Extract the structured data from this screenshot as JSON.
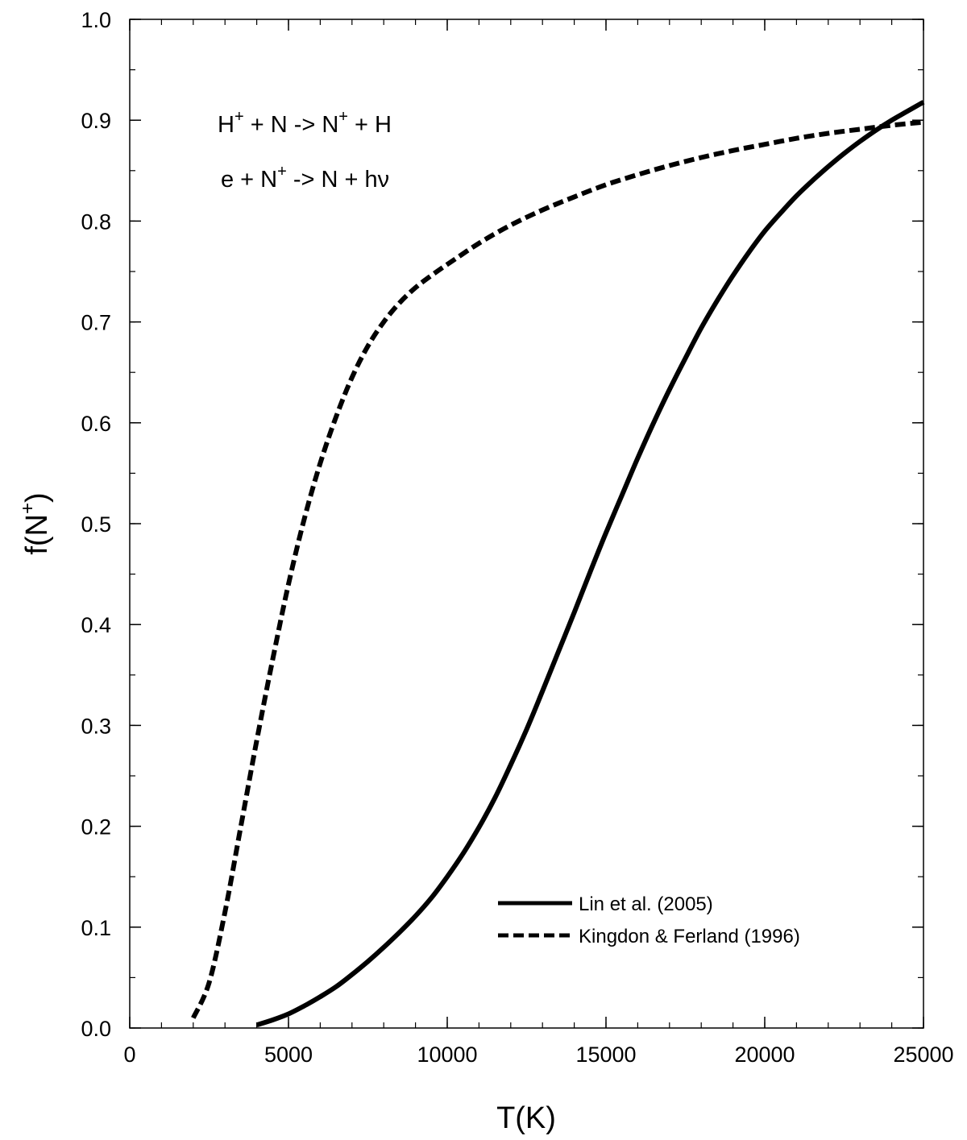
{
  "chart_data": {
    "type": "line",
    "title": "",
    "xlabel": "T(K)",
    "ylabel_base": "f(N",
    "ylabel_sup": "+",
    "ylabel_close": ")",
    "xlim": [
      0,
      25000
    ],
    "ylim": [
      0.0,
      1.0
    ],
    "x_ticks": [
      0,
      5000,
      10000,
      15000,
      20000,
      25000
    ],
    "x_tick_labels": [
      "0",
      "5000",
      "10000",
      "15000",
      "20000",
      "25000"
    ],
    "y_ticks": [
      0.0,
      0.1,
      0.2,
      0.3,
      0.4,
      0.5,
      0.6,
      0.7,
      0.8,
      0.9,
      1.0
    ],
    "y_tick_labels": [
      "0.0",
      "0.1",
      "0.2",
      "0.3",
      "0.4",
      "0.5",
      "0.6",
      "0.7",
      "0.8",
      "0.9",
      "1.0"
    ],
    "x_minor_step": 1000,
    "y_minor_step": 0.05,
    "grid": false,
    "legend_position": "bottom-right",
    "annotations": [
      {
        "parts": [
          {
            "t": "H"
          },
          {
            "t": "+",
            "sup": true
          },
          {
            "t": " + N -> N"
          },
          {
            "t": "+",
            "sup": true
          },
          {
            "t": " + H"
          }
        ]
      },
      {
        "parts": [
          {
            "t": "e + N"
          },
          {
            "t": "+",
            "sup": true
          },
          {
            "t": " -> N + hν"
          }
        ]
      }
    ],
    "series": [
      {
        "name": "Lin et al. (2005)",
        "style": "solid",
        "color": "#000000",
        "x": [
          4000,
          4500,
          5000,
          5500,
          6000,
          6500,
          7000,
          7500,
          8000,
          8500,
          9000,
          9500,
          10000,
          10500,
          11000,
          11500,
          12000,
          12500,
          13000,
          13500,
          14000,
          14500,
          15000,
          15500,
          16000,
          16500,
          17000,
          17500,
          18000,
          18500,
          19000,
          19500,
          20000,
          20500,
          21000,
          21500,
          22000,
          22500,
          23000,
          23500,
          24000,
          24500,
          25000
        ],
        "y": [
          0.003,
          0.008,
          0.014,
          0.022,
          0.031,
          0.041,
          0.053,
          0.066,
          0.08,
          0.095,
          0.111,
          0.129,
          0.15,
          0.173,
          0.199,
          0.228,
          0.261,
          0.296,
          0.334,
          0.373,
          0.412,
          0.452,
          0.491,
          0.528,
          0.565,
          0.6,
          0.633,
          0.664,
          0.694,
          0.721,
          0.746,
          0.769,
          0.79,
          0.808,
          0.825,
          0.84,
          0.854,
          0.867,
          0.879,
          0.89,
          0.9,
          0.909,
          0.918
        ]
      },
      {
        "name": "Kingdon & Ferland (1996)",
        "style": "dashed",
        "color": "#000000",
        "x": [
          2000,
          2500,
          3000,
          3500,
          4000,
          4500,
          5000,
          5500,
          6000,
          6500,
          7000,
          7500,
          8000,
          8500,
          9000,
          9500,
          10000,
          11000,
          12000,
          13000,
          14000,
          15000,
          16000,
          17000,
          18000,
          19000,
          20000,
          21000,
          22000,
          23000,
          24000,
          25000
        ],
        "y": [
          0.01,
          0.045,
          0.115,
          0.2,
          0.285,
          0.365,
          0.44,
          0.505,
          0.56,
          0.606,
          0.645,
          0.676,
          0.7,
          0.719,
          0.734,
          0.746,
          0.757,
          0.778,
          0.796,
          0.811,
          0.824,
          0.836,
          0.846,
          0.855,
          0.863,
          0.87,
          0.876,
          0.882,
          0.887,
          0.891,
          0.895,
          0.898
        ]
      }
    ]
  }
}
